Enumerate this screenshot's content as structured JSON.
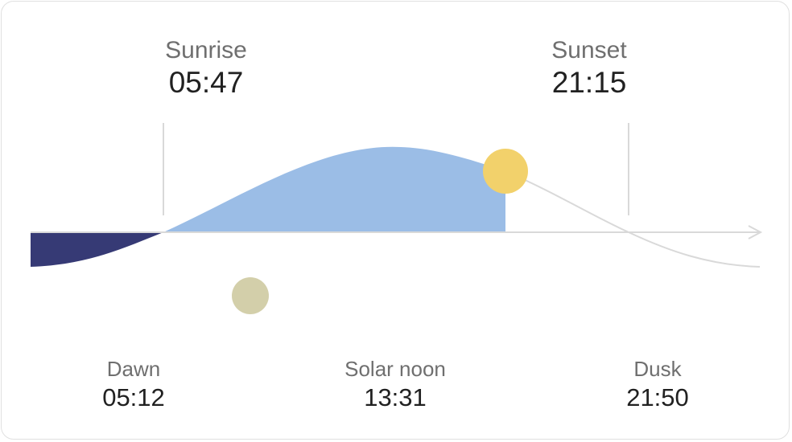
{
  "sunrise": {
    "label": "Sunrise",
    "time": "05:47"
  },
  "sunset": {
    "label": "Sunset",
    "time": "21:15"
  },
  "dawn": {
    "label": "Dawn",
    "time": "05:12"
  },
  "solar_noon": {
    "label": "Solar noon",
    "time": "13:31"
  },
  "dusk": {
    "label": "Dusk",
    "time": "21:50"
  },
  "colors": {
    "night": "#363a75",
    "day": "#9bbde6",
    "sun": "#f2d16b",
    "moon": "#d3cfaa",
    "axis": "#d9d9d9"
  },
  "icons": {
    "sun": "sun-icon",
    "moon": "moon-icon",
    "arrow": "arrow-right-icon"
  }
}
